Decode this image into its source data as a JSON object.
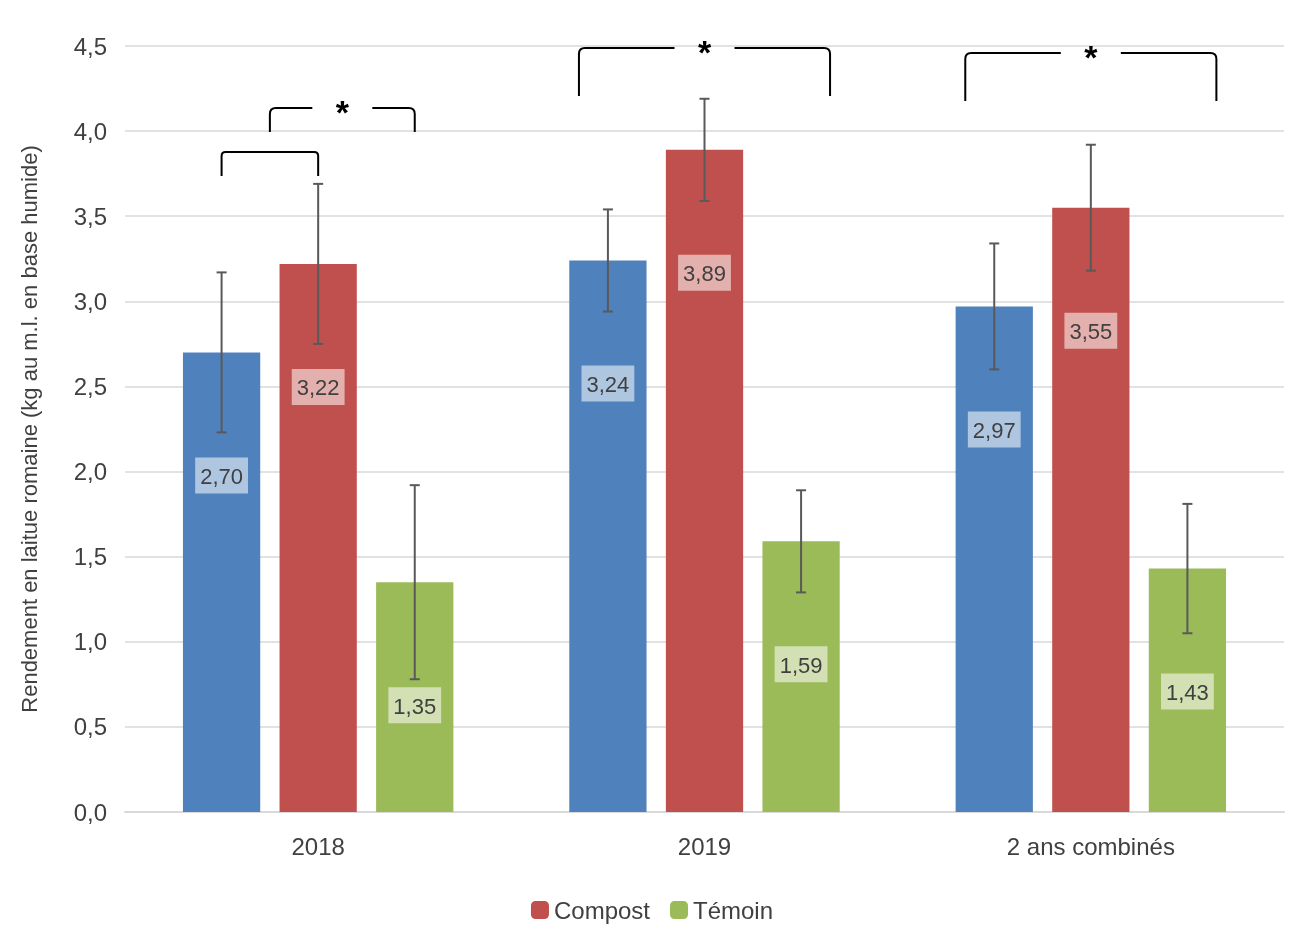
{
  "chart_data": {
    "type": "bar",
    "ylabel": "Rendement en laitue romaine (kg au m.l. en base humide)",
    "categories": [
      "2018",
      "2019",
      "2 ans combinés"
    ],
    "series": [
      {
        "color": "#4f81bd",
        "values": [
          2.7,
          3.24,
          2.97
        ],
        "errors": [
          0.47,
          0.3,
          0.37
        ],
        "value_labels": [
          "2,70",
          "3,24",
          "2,97"
        ]
      },
      {
        "name": "Compost",
        "color": "#c0504d",
        "values": [
          3.22,
          3.89,
          3.55
        ],
        "errors": [
          0.47,
          0.3,
          0.37
        ],
        "value_labels": [
          "3,22",
          "3,89",
          "3,55"
        ]
      },
      {
        "name": "Témoin",
        "color": "#9bbb59",
        "values": [
          1.35,
          1.59,
          1.43
        ],
        "errors": [
          0.57,
          0.3,
          0.38
        ],
        "value_labels": [
          "1,35",
          "1,59",
          "1,43"
        ]
      }
    ],
    "ylim": [
      0,
      4.5
    ],
    "yticks": [
      {
        "value": 0,
        "label": "0,0"
      },
      {
        "value": 0.5,
        "label": "0,5"
      },
      {
        "value": 1,
        "label": "1,0"
      },
      {
        "value": 1.5,
        "label": "1,5"
      },
      {
        "value": 2,
        "label": "2,0"
      },
      {
        "value": 2.5,
        "label": "2,5"
      },
      {
        "value": 3,
        "label": "3,0"
      },
      {
        "value": 3.5,
        "label": "3,5"
      },
      {
        "value": 4,
        "label": "4,0"
      },
      {
        "value": 4.5,
        "label": "4,5"
      }
    ],
    "grid": "y",
    "legend": "bottom",
    "annotations": [
      "*",
      "*",
      "*"
    ]
  }
}
